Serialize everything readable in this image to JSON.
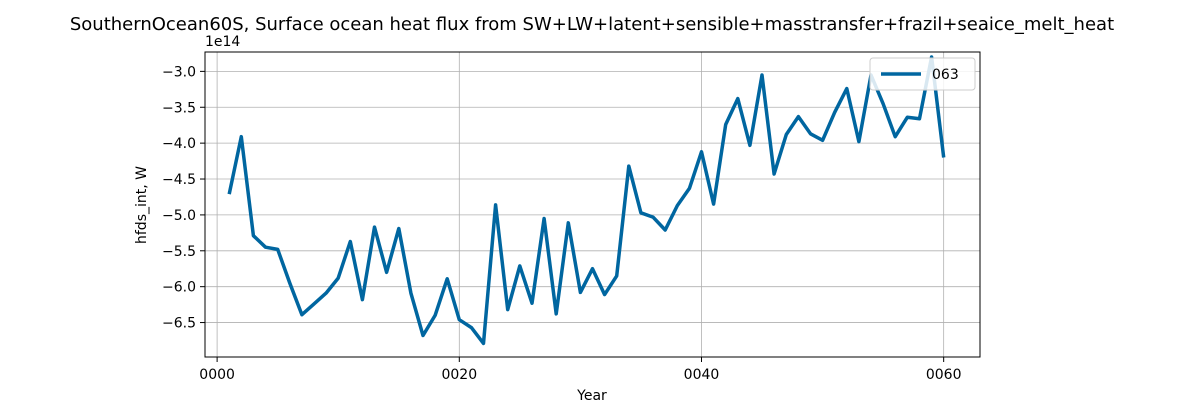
{
  "chart_data": {
    "type": "line",
    "title": "SouthernOcean60S, Surface ocean heat flux from SW+LW+latent+sensible+masstransfer+frazil+seaice_melt_heat",
    "xlabel": "Year",
    "ylabel": "hfds_int, W",
    "offset_label": "1e14",
    "xlim": [
      -1,
      63
    ],
    "ylim": [
      -6.98,
      -2.73
    ],
    "xticks": [
      0,
      20,
      40,
      60
    ],
    "xtick_labels": [
      "0000",
      "0020",
      "0040",
      "0060"
    ],
    "yticks": [
      -3.0,
      -3.5,
      -4.0,
      -4.5,
      -5.0,
      -5.5,
      -6.0,
      -6.5
    ],
    "ytick_labels": [
      "−3.0",
      "−3.5",
      "−4.0",
      "−4.5",
      "−5.0",
      "−5.5",
      "−6.0",
      "−6.5"
    ],
    "grid": true,
    "legend_position": "top-right",
    "series": [
      {
        "name": "063",
        "color": "#0066a0",
        "x": [
          1,
          2,
          3,
          4,
          5,
          6,
          7,
          8,
          9,
          10,
          11,
          12,
          13,
          14,
          15,
          16,
          17,
          18,
          19,
          20,
          21,
          22,
          23,
          24,
          25,
          26,
          27,
          28,
          29,
          30,
          31,
          32,
          33,
          34,
          35,
          36,
          37,
          38,
          39,
          40,
          41,
          42,
          43,
          44,
          45,
          46,
          47,
          48,
          49,
          50,
          51,
          52,
          53,
          54,
          55,
          56,
          57,
          58,
          59,
          60
        ],
        "values": [
          -4.71,
          -3.91,
          -5.29,
          -5.45,
          -5.48,
          -5.95,
          -6.39,
          -6.24,
          -6.09,
          -5.88,
          -5.37,
          -6.18,
          -5.17,
          -5.8,
          -5.19,
          -6.09,
          -6.68,
          -6.4,
          -5.89,
          -6.46,
          -6.57,
          -6.79,
          -4.86,
          -6.32,
          -5.71,
          -6.23,
          -5.05,
          -6.38,
          -5.11,
          -6.08,
          -5.75,
          -6.11,
          -5.85,
          -4.32,
          -4.97,
          -5.03,
          -5.21,
          -4.87,
          -4.63,
          -4.12,
          -4.85,
          -3.74,
          -3.38,
          -4.03,
          -3.05,
          -4.43,
          -3.88,
          -3.63,
          -3.87,
          -3.96,
          -3.57,
          -3.24,
          -3.98,
          -3.05,
          -3.45,
          -3.91,
          -3.64,
          -3.66,
          -2.8,
          -4.2
        ]
      }
    ]
  }
}
